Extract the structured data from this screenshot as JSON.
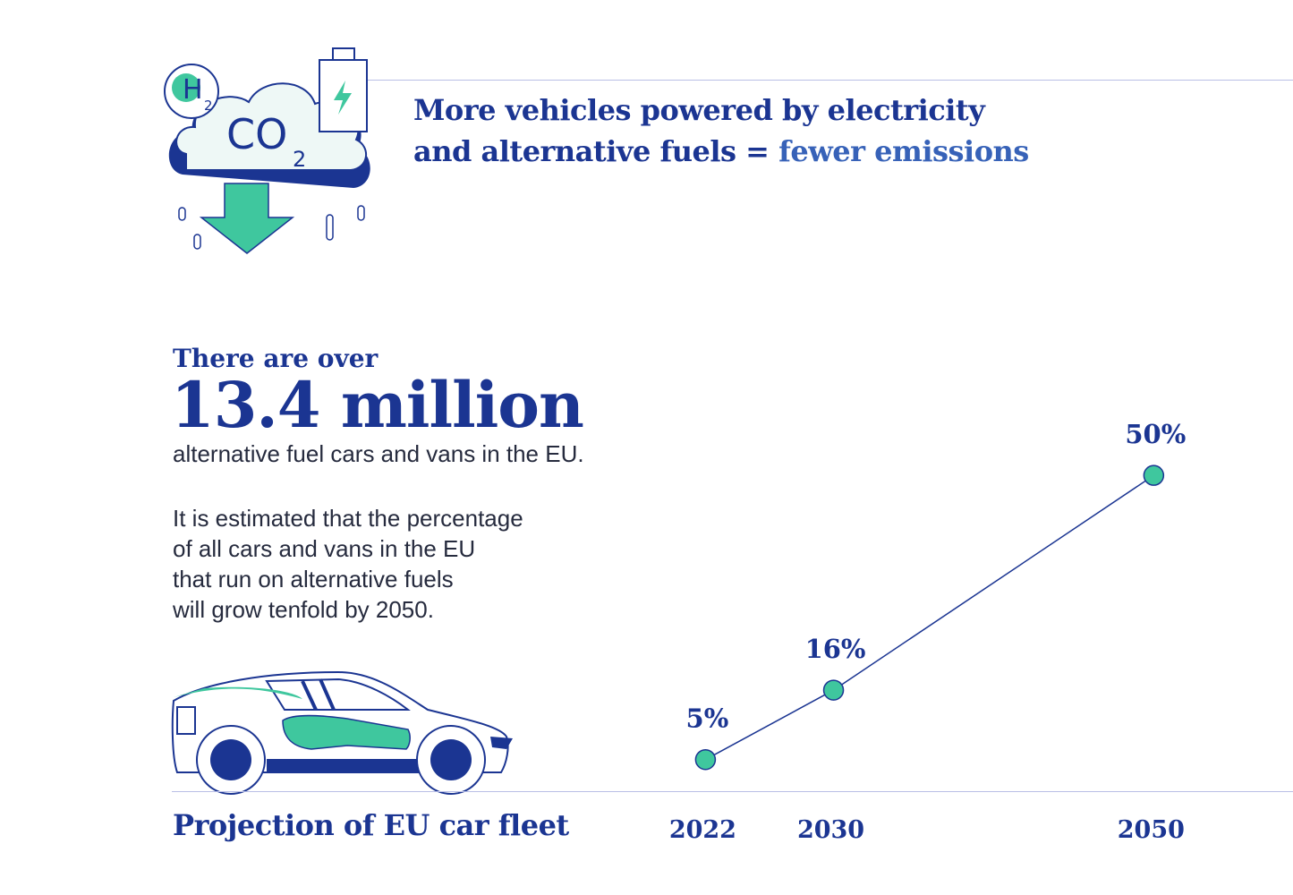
{
  "header": {
    "line1": "More vehicles powered by electricity",
    "line2_prefix": "and alternative fuels = ",
    "line2_highlight": "fewer emissions"
  },
  "icon": {
    "h": "H",
    "h_sub": "2",
    "co": "CO",
    "co_sub": "2"
  },
  "stats": {
    "intro": "There are over",
    "big_number": "13.4 million",
    "subtitle": "alternative fuel cars and vans in the EU.",
    "description": "It is estimated that the percentage\nof all cars and vans in the EU\nthat run on alternative fuels\nwill grow tenfold by 2050."
  },
  "colors": {
    "navy": "#1b3592",
    "accent": "#3762b8",
    "green": "#3fc79e",
    "rule": "#b9bfe6"
  },
  "chart_data": {
    "type": "line",
    "title": "Projection of EU car fleet",
    "x": [
      2022,
      2030,
      2050
    ],
    "x_tick_labels": [
      "2022",
      "2030",
      "2050"
    ],
    "series": [
      {
        "values": [
          5,
          16,
          50
        ],
        "labels": [
          "5%",
          "16%",
          "50%"
        ]
      }
    ],
    "xlim": [
      2016.5,
      2058.7
    ],
    "ylim": [
      0,
      70
    ],
    "grid": false,
    "legend": "none"
  }
}
